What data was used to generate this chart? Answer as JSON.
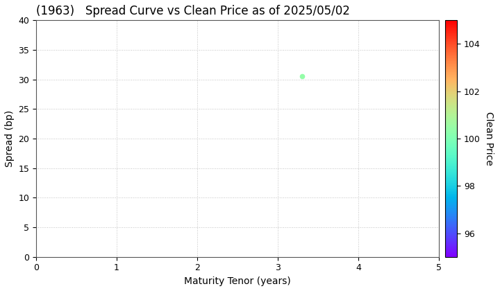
{
  "title": "(1963)   Spread Curve vs Clean Price as of 2025/05/02",
  "xlabel": "Maturity Tenor (years)",
  "ylabel": "Spread (bp)",
  "colorbar_label": "Clean Price",
  "xlim": [
    0,
    5
  ],
  "ylim": [
    0,
    40
  ],
  "xticks": [
    0,
    1,
    2,
    3,
    4,
    5
  ],
  "yticks": [
    0,
    5,
    10,
    15,
    20,
    25,
    30,
    35,
    40
  ],
  "colorbar_ticks": [
    96,
    98,
    100,
    102,
    104
  ],
  "colorbar_vmin": 95,
  "colorbar_vmax": 105,
  "scatter_x": [
    3.3
  ],
  "scatter_y": [
    30.5
  ],
  "scatter_clean_price": [
    100.4
  ],
  "marker_size": 20,
  "background_color": "#ffffff",
  "grid_color": "#bbbbbb",
  "title_fontsize": 12,
  "axis_label_fontsize": 10,
  "tick_fontsize": 9
}
